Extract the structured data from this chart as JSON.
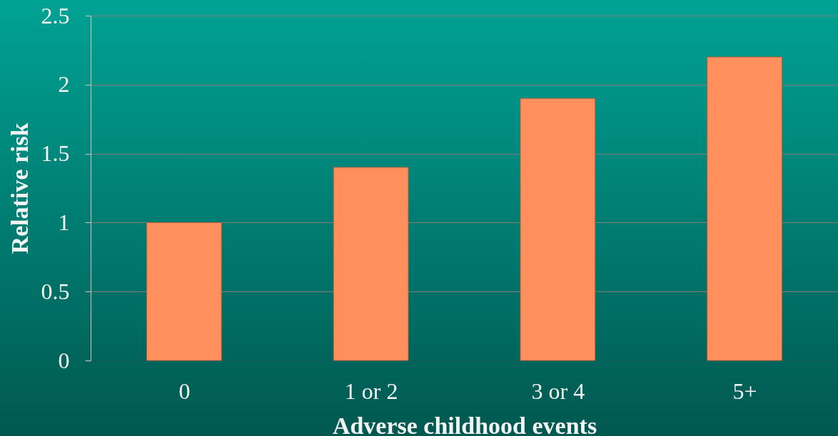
{
  "chart_data": {
    "type": "bar",
    "xlabel": "Adverse childhood events",
    "ylabel": "Relative risk",
    "categories": [
      "0",
      "1 or 2",
      "3 or 4",
      "5+"
    ],
    "values": [
      1,
      1.4,
      1.9,
      2.2
    ],
    "color": "#ff8f5c",
    "ylim": [
      0,
      2.5
    ],
    "yticks": [
      0,
      0.5,
      1,
      1.5,
      2,
      2.5
    ],
    "grid": "y"
  }
}
